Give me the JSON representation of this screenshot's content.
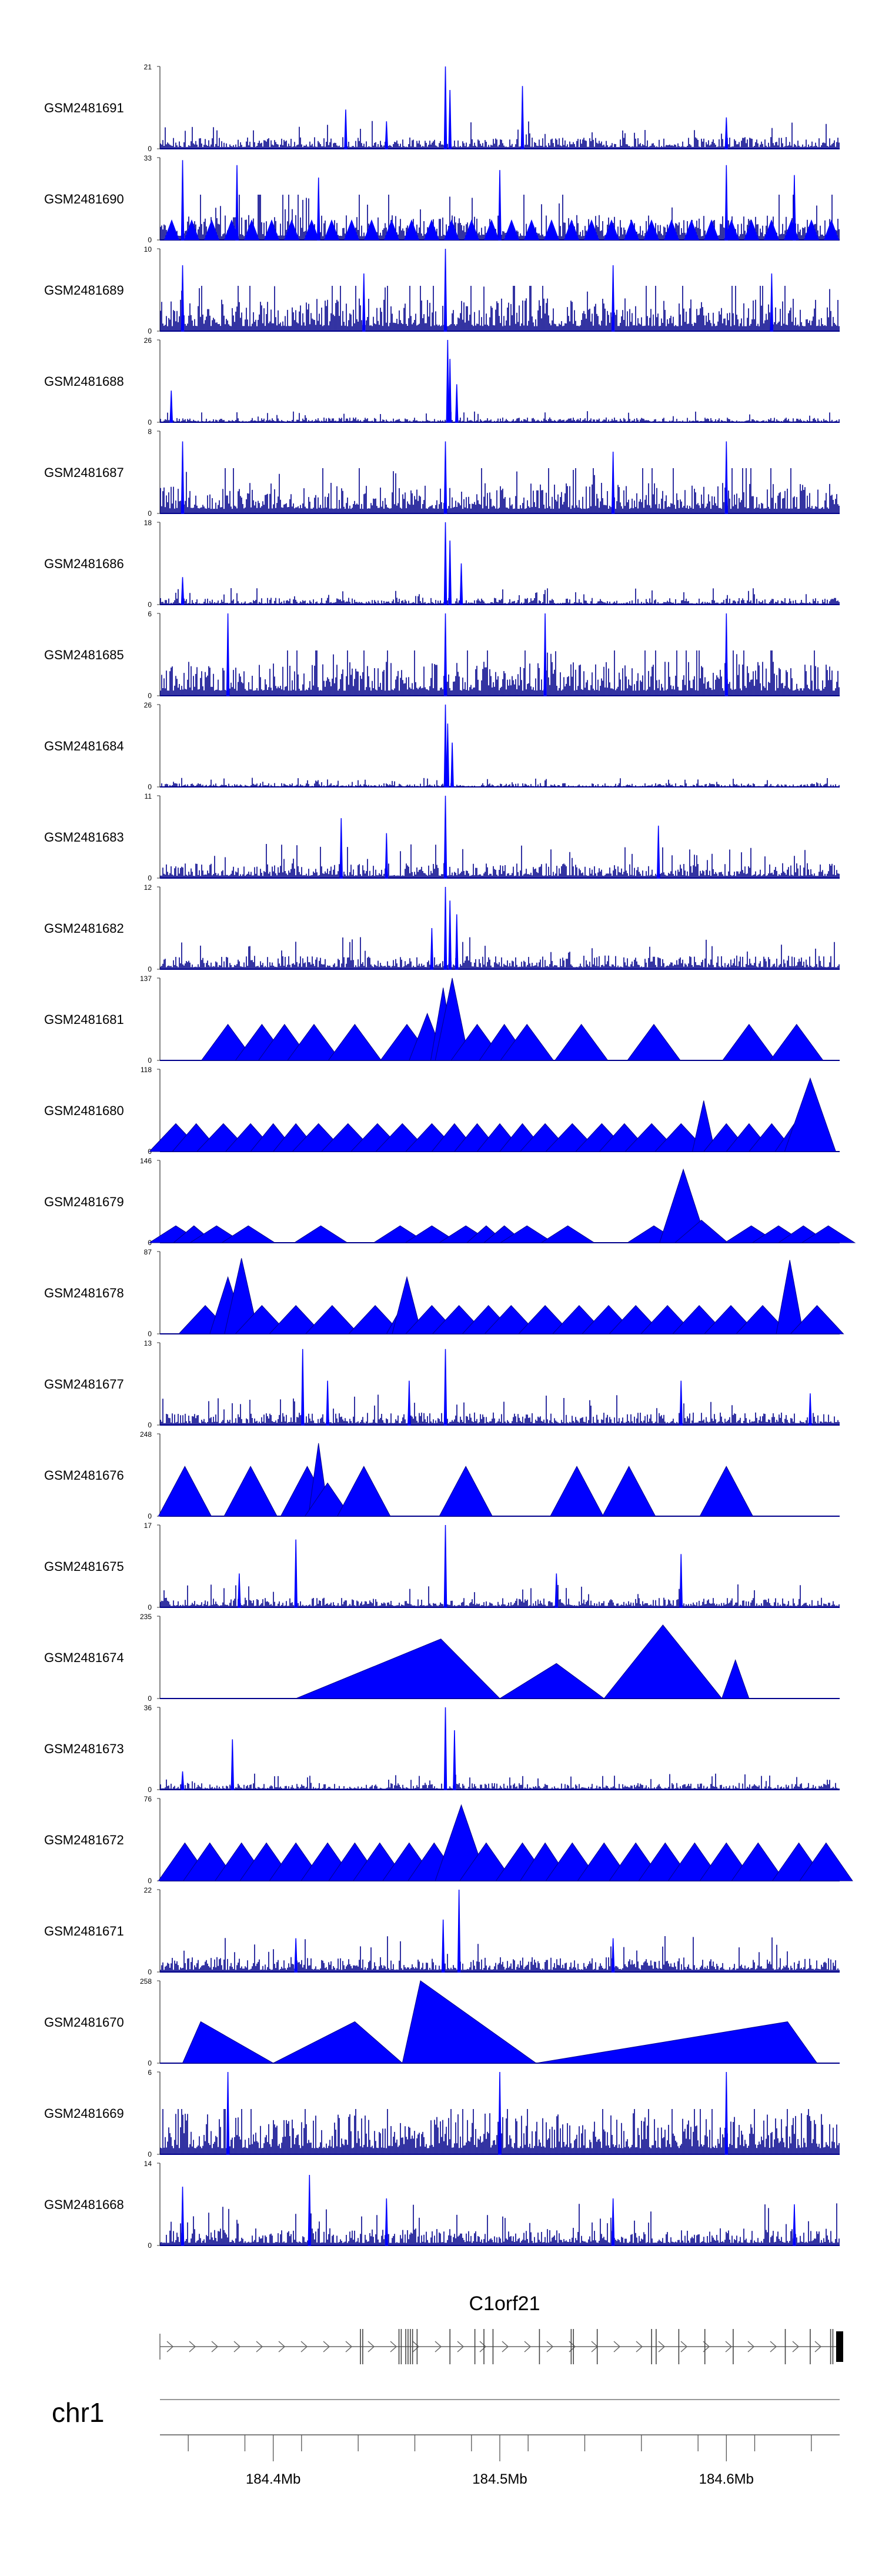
{
  "chart_data": {
    "type": "area",
    "title": "",
    "chromosome": "chr1",
    "gene": "C1orf21",
    "xlim": [
      184.35,
      184.65
    ],
    "xticks": [
      {
        "value": 184.4,
        "label": "184.4Mb"
      },
      {
        "value": 184.5,
        "label": "184.5Mb"
      },
      {
        "value": 184.6,
        "label": "184.6Mb"
      }
    ],
    "tracks": [
      {
        "name": "GSM2481691",
        "ymax": 21,
        "ymin": 0,
        "style": "dense",
        "bg": 3,
        "peaks": [
          [
            184.432,
            10
          ],
          [
            184.476,
            21
          ],
          [
            184.478,
            15
          ],
          [
            184.51,
            16
          ],
          [
            184.45,
            7
          ],
          [
            184.6,
            8
          ]
        ]
      },
      {
        "name": "GSM2481690",
        "ymax": 33,
        "ymin": 0,
        "style": "dense_tri",
        "bg": 10,
        "peaks": [
          [
            184.36,
            32
          ],
          [
            184.384,
            30
          ],
          [
            184.42,
            25
          ],
          [
            184.5,
            28
          ],
          [
            184.6,
            30
          ],
          [
            184.63,
            26
          ]
        ]
      },
      {
        "name": "GSM2481689",
        "ymax": 10,
        "ymin": 0,
        "style": "dense",
        "bg": 4,
        "peaks": [
          [
            184.476,
            10
          ],
          [
            184.36,
            8
          ],
          [
            184.44,
            7
          ],
          [
            184.55,
            8
          ],
          [
            184.62,
            7
          ]
        ]
      },
      {
        "name": "GSM2481688",
        "ymax": 26,
        "ymin": 0,
        "style": "dense",
        "bg": 1.5,
        "peaks": [
          [
            184.477,
            26
          ],
          [
            184.478,
            20
          ],
          [
            184.481,
            12
          ],
          [
            184.355,
            10
          ]
        ]
      },
      {
        "name": "GSM2481687",
        "ymax": 8,
        "ymin": 0,
        "style": "dense",
        "bg": 3,
        "peaks": [
          [
            184.36,
            7
          ],
          [
            184.476,
            7
          ],
          [
            184.55,
            6
          ],
          [
            184.6,
            7
          ]
        ]
      },
      {
        "name": "GSM2481686",
        "ymax": 18,
        "ymin": 0,
        "style": "dense",
        "bg": 1.5,
        "peaks": [
          [
            184.476,
            18
          ],
          [
            184.478,
            14
          ],
          [
            184.483,
            9
          ],
          [
            184.36,
            6
          ]
        ]
      },
      {
        "name": "GSM2481685",
        "ymax": 6,
        "ymin": 0,
        "style": "dense",
        "bg": 2.5,
        "peaks": [
          [
            184.38,
            6
          ],
          [
            184.476,
            6
          ],
          [
            184.52,
            6
          ],
          [
            184.6,
            6
          ]
        ]
      },
      {
        "name": "GSM2481684",
        "ymax": 26,
        "ymin": 0,
        "style": "dense",
        "bg": 1.2,
        "peaks": [
          [
            184.476,
            26
          ],
          [
            184.477,
            20
          ],
          [
            184.479,
            14
          ]
        ]
      },
      {
        "name": "GSM2481683",
        "ymax": 11,
        "ymin": 0,
        "style": "dense",
        "bg": 2,
        "peaks": [
          [
            184.476,
            11
          ],
          [
            184.43,
            8
          ],
          [
            184.57,
            7
          ],
          [
            184.45,
            6
          ]
        ]
      },
      {
        "name": "GSM2481682",
        "ymax": 12,
        "ymin": 0,
        "style": "dense",
        "bg": 2,
        "peaks": [
          [
            184.476,
            12
          ],
          [
            184.478,
            10
          ],
          [
            184.481,
            8
          ],
          [
            184.47,
            6
          ]
        ]
      },
      {
        "name": "GSM2481681",
        "ymax": 137,
        "ymin": 0,
        "style": "tri",
        "peaks": [
          [
            184.38,
            60
          ],
          [
            184.395,
            60
          ],
          [
            184.405,
            60
          ],
          [
            184.418,
            60
          ],
          [
            184.436,
            60
          ],
          [
            184.459,
            60
          ],
          [
            184.468,
            78
          ],
          [
            184.475,
            121
          ],
          [
            184.479,
            137
          ],
          [
            184.49,
            60
          ],
          [
            184.502,
            60
          ],
          [
            184.512,
            60
          ],
          [
            184.536,
            60
          ],
          [
            184.568,
            60
          ],
          [
            184.61,
            60
          ],
          [
            184.631,
            60
          ]
        ]
      },
      {
        "name": "GSM2481680",
        "ymax": 118,
        "ymin": 0,
        "style": "tri",
        "peaks": [
          [
            184.357,
            40
          ],
          [
            184.366,
            40
          ],
          [
            184.378,
            40
          ],
          [
            184.39,
            40
          ],
          [
            184.4,
            40
          ],
          [
            184.41,
            40
          ],
          [
            184.42,
            40
          ],
          [
            184.433,
            40
          ],
          [
            184.446,
            40
          ],
          [
            184.457,
            40
          ],
          [
            184.47,
            40
          ],
          [
            184.48,
            40
          ],
          [
            184.49,
            40
          ],
          [
            184.5,
            40
          ],
          [
            184.51,
            40
          ],
          [
            184.52,
            40
          ],
          [
            184.532,
            40
          ],
          [
            184.545,
            40
          ],
          [
            184.555,
            40
          ],
          [
            184.567,
            40
          ],
          [
            184.58,
            40
          ],
          [
            184.59,
            40
          ],
          [
            184.6,
            40
          ],
          [
            184.61,
            40
          ],
          [
            184.62,
            40
          ],
          [
            184.63,
            40
          ],
          [
            184.59,
            73
          ],
          [
            184.637,
            105
          ]
        ]
      },
      {
        "name": "GSM2481679",
        "ymax": 146,
        "ymin": 0,
        "style": "tri",
        "peaks": [
          [
            184.357,
            30
          ],
          [
            184.365,
            30
          ],
          [
            184.375,
            30
          ],
          [
            184.389,
            30
          ],
          [
            184.421,
            30
          ],
          [
            184.456,
            30
          ],
          [
            184.47,
            30
          ],
          [
            184.485,
            30
          ],
          [
            184.494,
            30
          ],
          [
            184.502,
            30
          ],
          [
            184.512,
            30
          ],
          [
            184.53,
            30
          ],
          [
            184.568,
            30
          ],
          [
            184.581,
            130
          ],
          [
            184.589,
            40
          ],
          [
            184.611,
            30
          ],
          [
            184.623,
            30
          ],
          [
            184.634,
            30
          ],
          [
            184.645,
            30
          ]
        ]
      },
      {
        "name": "GSM2481678",
        "ymax": 87,
        "ymin": 0,
        "style": "tri",
        "peaks": [
          [
            184.37,
            30
          ],
          [
            184.38,
            60
          ],
          [
            184.386,
            80
          ],
          [
            184.395,
            30
          ],
          [
            184.41,
            30
          ],
          [
            184.426,
            30
          ],
          [
            184.445,
            30
          ],
          [
            184.457,
            30
          ],
          [
            184.459,
            60
          ],
          [
            184.47,
            30
          ],
          [
            184.482,
            30
          ],
          [
            184.495,
            30
          ],
          [
            184.505,
            30
          ],
          [
            184.52,
            30
          ],
          [
            184.535,
            30
          ],
          [
            184.548,
            30
          ],
          [
            184.56,
            30
          ],
          [
            184.574,
            30
          ],
          [
            184.588,
            30
          ],
          [
            184.602,
            30
          ],
          [
            184.616,
            30
          ],
          [
            184.628,
            30
          ],
          [
            184.64,
            30
          ],
          [
            184.628,
            78
          ]
        ]
      },
      {
        "name": "GSM2481677",
        "ymax": 13,
        "ymin": 0,
        "style": "dense",
        "bg": 2,
        "peaks": [
          [
            184.476,
            12
          ],
          [
            184.413,
            12
          ],
          [
            184.424,
            7
          ],
          [
            184.46,
            7
          ],
          [
            184.58,
            7
          ],
          [
            184.637,
            5
          ]
        ]
      },
      {
        "name": "GSM2481676",
        "ymax": 248,
        "ymin": 0,
        "style": "tri",
        "peaks": [
          [
            184.361,
            150
          ],
          [
            184.39,
            150
          ],
          [
            184.415,
            150
          ],
          [
            184.42,
            220
          ],
          [
            184.424,
            100
          ],
          [
            184.44,
            150
          ],
          [
            184.485,
            150
          ],
          [
            184.534,
            150
          ],
          [
            184.557,
            150
          ],
          [
            184.6,
            150
          ]
        ]
      },
      {
        "name": "GSM2481675",
        "ymax": 17,
        "ymin": 0,
        "style": "dense",
        "bg": 2,
        "peaks": [
          [
            184.476,
            17
          ],
          [
            184.41,
            14
          ],
          [
            184.58,
            11
          ],
          [
            184.385,
            7
          ],
          [
            184.525,
            7
          ]
        ]
      },
      {
        "name": "GSM2481674",
        "ymax": 235,
        "ymin": 0,
        "style": "tri_custom",
        "segs": [
          [
            184.41,
            0,
            184.474,
            170,
            184.5,
            0
          ],
          [
            184.5,
            0,
            184.525,
            100,
            184.546,
            0
          ],
          [
            184.546,
            0,
            184.572,
            210,
            184.598,
            0
          ],
          [
            184.598,
            0,
            184.604,
            110,
            184.61,
            0
          ]
        ]
      },
      {
        "name": "GSM2481673",
        "ymax": 36,
        "ymin": 0,
        "style": "dense",
        "bg": 3,
        "peaks": [
          [
            184.476,
            36
          ],
          [
            184.48,
            26
          ],
          [
            184.382,
            22
          ],
          [
            184.36,
            8
          ]
        ]
      },
      {
        "name": "GSM2481672",
        "ymax": 76,
        "ymin": 0,
        "style": "tri",
        "peaks": [
          [
            184.361,
            35
          ],
          [
            184.372,
            35
          ],
          [
            184.386,
            35
          ],
          [
            184.397,
            35
          ],
          [
            184.41,
            35
          ],
          [
            184.424,
            35
          ],
          [
            184.436,
            35
          ],
          [
            184.447,
            35
          ],
          [
            184.46,
            35
          ],
          [
            184.471,
            35
          ],
          [
            184.483,
            70
          ],
          [
            184.494,
            35
          ],
          [
            184.51,
            35
          ],
          [
            184.52,
            35
          ],
          [
            184.532,
            35
          ],
          [
            184.546,
            35
          ],
          [
            184.56,
            35
          ],
          [
            184.573,
            35
          ],
          [
            184.586,
            35
          ],
          [
            184.6,
            35
          ],
          [
            184.614,
            35
          ],
          [
            184.632,
            35
          ],
          [
            184.644,
            35
          ]
        ]
      },
      {
        "name": "GSM2481671",
        "ymax": 22,
        "ymin": 0,
        "style": "dense",
        "bg": 4,
        "peaks": [
          [
            184.482,
            22
          ],
          [
            184.475,
            14
          ],
          [
            184.41,
            9
          ],
          [
            184.55,
            9
          ]
        ]
      },
      {
        "name": "GSM2481670",
        "ymax": 258,
        "ymin": 0,
        "style": "tri_custom",
        "segs": [
          [
            184.36,
            0,
            184.368,
            130,
            184.4,
            0
          ],
          [
            184.4,
            0,
            184.436,
            130,
            184.457,
            0
          ],
          [
            184.457,
            0,
            184.465,
            258,
            184.516,
            0
          ],
          [
            184.516,
            0,
            184.627,
            130,
            184.64,
            0
          ]
        ]
      },
      {
        "name": "GSM2481669",
        "ymax": 6,
        "ymin": 0,
        "style": "dense",
        "bg": 3,
        "peaks": [
          [
            184.38,
            6
          ],
          [
            184.5,
            6
          ],
          [
            184.6,
            6
          ]
        ]
      },
      {
        "name": "GSM2481668",
        "ymax": 14,
        "ymin": 0,
        "style": "dense",
        "bg": 3,
        "peaks": [
          [
            184.36,
            10
          ],
          [
            184.416,
            12
          ],
          [
            184.45,
            8
          ],
          [
            184.55,
            8
          ],
          [
            184.63,
            7
          ]
        ]
      }
    ],
    "transcript": {
      "start": 184.35,
      "end": 184.65,
      "exons": [
        184.4385,
        184.4395,
        184.4555,
        184.4565,
        184.4585,
        184.4595,
        184.4605,
        184.4615,
        184.4635,
        184.478,
        184.489,
        184.493,
        184.497,
        184.5175,
        184.5315,
        184.5325,
        184.543,
        184.567,
        184.569,
        184.579,
        184.5905,
        184.603,
        184.626,
        184.637,
        184.646,
        184.647
      ]
    }
  }
}
